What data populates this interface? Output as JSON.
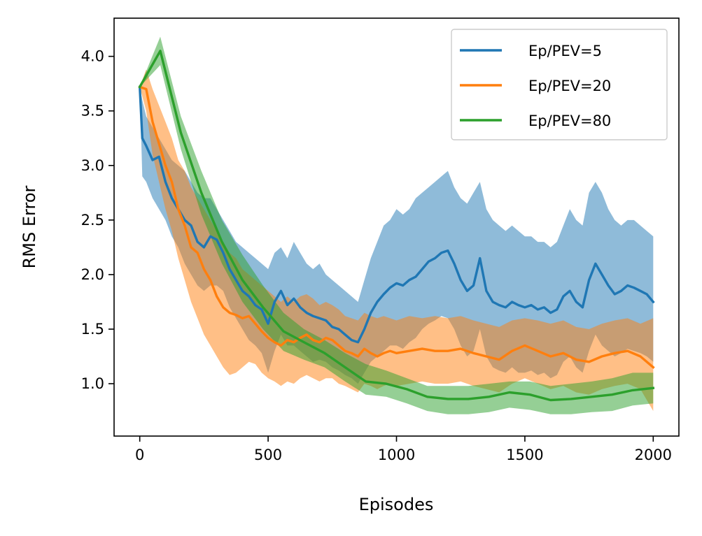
{
  "chart_data": {
    "type": "line",
    "title": "",
    "xlabel": "Episodes",
    "ylabel": "RMS Error",
    "xlim": [
      -100,
      2100
    ],
    "ylim": [
      0.52,
      4.35
    ],
    "xticks": [
      0,
      500,
      1000,
      1500,
      2000
    ],
    "yticks": [
      1.0,
      1.5,
      2.0,
      2.5,
      3.0,
      3.5,
      4.0
    ],
    "xtick_labels": [
      "0",
      "500",
      "1000",
      "1500",
      "2000"
    ],
    "ytick_labels": [
      "1.0",
      "1.5",
      "2.0",
      "2.5",
      "3.0",
      "3.5",
      "4.0"
    ],
    "grid": false,
    "legend_position": "top-right",
    "series": [
      {
        "name": "Ep/PEV=5",
        "color": "#1f77b4",
        "x": [
          0,
          10,
          25,
          50,
          75,
          100,
          125,
          150,
          175,
          200,
          225,
          250,
          275,
          300,
          325,
          350,
          375,
          400,
          425,
          450,
          475,
          500,
          525,
          550,
          575,
          600,
          625,
          650,
          675,
          700,
          725,
          750,
          775,
          800,
          825,
          850,
          875,
          900,
          925,
          950,
          975,
          1000,
          1025,
          1050,
          1075,
          1100,
          1125,
          1150,
          1175,
          1200,
          1225,
          1250,
          1275,
          1300,
          1325,
          1350,
          1375,
          1400,
          1425,
          1450,
          1475,
          1500,
          1525,
          1550,
          1575,
          1600,
          1625,
          1650,
          1675,
          1700,
          1725,
          1750,
          1775,
          1800,
          1825,
          1850,
          1875,
          1900,
          1925,
          1950,
          1975,
          2000
        ],
        "y": [
          3.72,
          3.25,
          3.18,
          3.05,
          3.08,
          2.85,
          2.7,
          2.6,
          2.5,
          2.45,
          2.3,
          2.25,
          2.35,
          2.32,
          2.2,
          2.05,
          1.95,
          1.85,
          1.8,
          1.72,
          1.68,
          1.55,
          1.75,
          1.85,
          1.72,
          1.78,
          1.7,
          1.65,
          1.62,
          1.6,
          1.58,
          1.52,
          1.5,
          1.45,
          1.4,
          1.38,
          1.5,
          1.65,
          1.75,
          1.82,
          1.88,
          1.92,
          1.9,
          1.95,
          1.98,
          2.05,
          2.12,
          2.15,
          2.2,
          2.22,
          2.1,
          1.95,
          1.85,
          1.9,
          2.15,
          1.85,
          1.75,
          1.72,
          1.7,
          1.75,
          1.72,
          1.7,
          1.72,
          1.68,
          1.7,
          1.65,
          1.68,
          1.8,
          1.85,
          1.75,
          1.7,
          1.95,
          2.1,
          2.0,
          1.9,
          1.82,
          1.85,
          1.9,
          1.88,
          1.85,
          1.82,
          1.75
        ],
        "band_upper": [
          3.72,
          3.6,
          3.45,
          3.35,
          3.25,
          3.15,
          3.05,
          3.0,
          2.95,
          2.85,
          2.75,
          2.7,
          2.7,
          2.6,
          2.5,
          2.4,
          2.3,
          2.25,
          2.2,
          2.15,
          2.1,
          2.05,
          2.2,
          2.25,
          2.15,
          2.3,
          2.2,
          2.1,
          2.05,
          2.1,
          2.0,
          1.95,
          1.9,
          1.85,
          1.8,
          1.75,
          1.95,
          2.15,
          2.3,
          2.45,
          2.5,
          2.6,
          2.55,
          2.6,
          2.7,
          2.75,
          2.8,
          2.85,
          2.9,
          2.95,
          2.8,
          2.7,
          2.65,
          2.75,
          2.85,
          2.6,
          2.5,
          2.45,
          2.4,
          2.45,
          2.4,
          2.35,
          2.35,
          2.3,
          2.3,
          2.25,
          2.3,
          2.45,
          2.6,
          2.5,
          2.45,
          2.75,
          2.85,
          2.75,
          2.6,
          2.5,
          2.45,
          2.5,
          2.5,
          2.45,
          2.4,
          2.35
        ],
        "band_lower": [
          3.72,
          2.9,
          2.85,
          2.7,
          2.6,
          2.5,
          2.35,
          2.25,
          2.1,
          2.0,
          1.9,
          1.85,
          1.9,
          1.9,
          1.85,
          1.7,
          1.6,
          1.5,
          1.4,
          1.35,
          1.28,
          1.1,
          1.3,
          1.45,
          1.35,
          1.35,
          1.3,
          1.25,
          1.2,
          1.22,
          1.2,
          1.15,
          1.12,
          1.08,
          1.05,
          1.0,
          1.1,
          1.2,
          1.25,
          1.3,
          1.35,
          1.35,
          1.32,
          1.38,
          1.42,
          1.5,
          1.55,
          1.58,
          1.62,
          1.6,
          1.5,
          1.35,
          1.25,
          1.3,
          1.5,
          1.25,
          1.15,
          1.12,
          1.1,
          1.15,
          1.1,
          1.1,
          1.12,
          1.08,
          1.1,
          1.05,
          1.08,
          1.2,
          1.25,
          1.15,
          1.1,
          1.3,
          1.45,
          1.35,
          1.3,
          1.25,
          1.28,
          1.32,
          1.3,
          1.28,
          1.25,
          1.2
        ]
      },
      {
        "name": "Ep/PEV=20",
        "color": "#ff7f0e",
        "x": [
          0,
          25,
          50,
          75,
          100,
          125,
          150,
          175,
          200,
          225,
          250,
          275,
          300,
          325,
          350,
          375,
          400,
          425,
          450,
          475,
          500,
          525,
          550,
          575,
          600,
          625,
          650,
          675,
          700,
          725,
          750,
          775,
          800,
          825,
          850,
          875,
          900,
          925,
          950,
          975,
          1000,
          1050,
          1100,
          1150,
          1200,
          1250,
          1300,
          1350,
          1400,
          1450,
          1500,
          1550,
          1600,
          1650,
          1700,
          1750,
          1800,
          1850,
          1900,
          1950,
          2000
        ],
        "y": [
          3.72,
          3.7,
          3.4,
          3.2,
          3.0,
          2.85,
          2.6,
          2.45,
          2.25,
          2.2,
          2.05,
          1.95,
          1.8,
          1.7,
          1.65,
          1.63,
          1.6,
          1.62,
          1.55,
          1.48,
          1.42,
          1.38,
          1.35,
          1.4,
          1.38,
          1.42,
          1.45,
          1.4,
          1.38,
          1.42,
          1.4,
          1.35,
          1.3,
          1.28,
          1.25,
          1.32,
          1.28,
          1.25,
          1.28,
          1.3,
          1.28,
          1.3,
          1.32,
          1.3,
          1.3,
          1.32,
          1.28,
          1.25,
          1.22,
          1.3,
          1.35,
          1.3,
          1.25,
          1.28,
          1.22,
          1.2,
          1.25,
          1.28,
          1.3,
          1.25,
          1.15
        ],
        "band_upper": [
          3.72,
          3.88,
          3.7,
          3.55,
          3.4,
          3.25,
          3.05,
          2.95,
          2.8,
          2.7,
          2.6,
          2.5,
          2.4,
          2.3,
          2.2,
          2.15,
          2.05,
          2.0,
          1.95,
          1.9,
          1.85,
          1.8,
          1.75,
          1.8,
          1.75,
          1.8,
          1.82,
          1.78,
          1.72,
          1.75,
          1.72,
          1.68,
          1.62,
          1.6,
          1.58,
          1.65,
          1.62,
          1.6,
          1.62,
          1.6,
          1.58,
          1.62,
          1.6,
          1.62,
          1.6,
          1.62,
          1.58,
          1.55,
          1.52,
          1.58,
          1.6,
          1.58,
          1.55,
          1.58,
          1.52,
          1.5,
          1.55,
          1.58,
          1.6,
          1.55,
          1.6
        ],
        "band_lower": [
          3.72,
          3.5,
          3.1,
          2.85,
          2.6,
          2.4,
          2.15,
          1.95,
          1.75,
          1.6,
          1.45,
          1.35,
          1.25,
          1.15,
          1.08,
          1.1,
          1.15,
          1.2,
          1.18,
          1.1,
          1.05,
          1.02,
          0.98,
          1.02,
          1.0,
          1.05,
          1.08,
          1.05,
          1.02,
          1.05,
          1.05,
          1.0,
          0.98,
          0.95,
          0.92,
          1.0,
          0.98,
          0.95,
          0.98,
          1.0,
          0.98,
          1.0,
          1.02,
          1.0,
          1.0,
          1.02,
          0.98,
          0.95,
          0.92,
          1.0,
          1.05,
          1.0,
          0.95,
          0.98,
          0.92,
          0.9,
          0.95,
          0.98,
          1.0,
          0.95,
          0.75
        ]
      },
      {
        "name": "Ep/PEV=80",
        "color": "#2ca02c",
        "x": [
          0,
          80,
          160,
          240,
          320,
          400,
          480,
          560,
          640,
          720,
          800,
          880,
          960,
          1040,
          1120,
          1200,
          1280,
          1360,
          1440,
          1520,
          1600,
          1680,
          1760,
          1840,
          1920,
          2000
        ],
        "y": [
          3.72,
          4.05,
          3.3,
          2.75,
          2.3,
          1.95,
          1.7,
          1.48,
          1.38,
          1.28,
          1.15,
          1.02,
          1.0,
          0.95,
          0.88,
          0.86,
          0.86,
          0.88,
          0.92,
          0.9,
          0.85,
          0.86,
          0.88,
          0.9,
          0.94,
          0.96
        ],
        "band_upper": [
          3.72,
          4.18,
          3.45,
          2.95,
          2.5,
          2.18,
          1.9,
          1.65,
          1.5,
          1.4,
          1.28,
          1.18,
          1.12,
          1.05,
          0.98,
          0.98,
          0.98,
          1.0,
          1.02,
          1.02,
          0.98,
          1.0,
          1.02,
          1.05,
          1.1,
          1.1
        ],
        "band_lower": [
          3.72,
          3.92,
          3.15,
          2.55,
          2.1,
          1.75,
          1.5,
          1.3,
          1.22,
          1.15,
          1.02,
          0.9,
          0.88,
          0.82,
          0.75,
          0.72,
          0.72,
          0.74,
          0.78,
          0.76,
          0.72,
          0.72,
          0.74,
          0.75,
          0.8,
          0.82
        ]
      }
    ]
  }
}
